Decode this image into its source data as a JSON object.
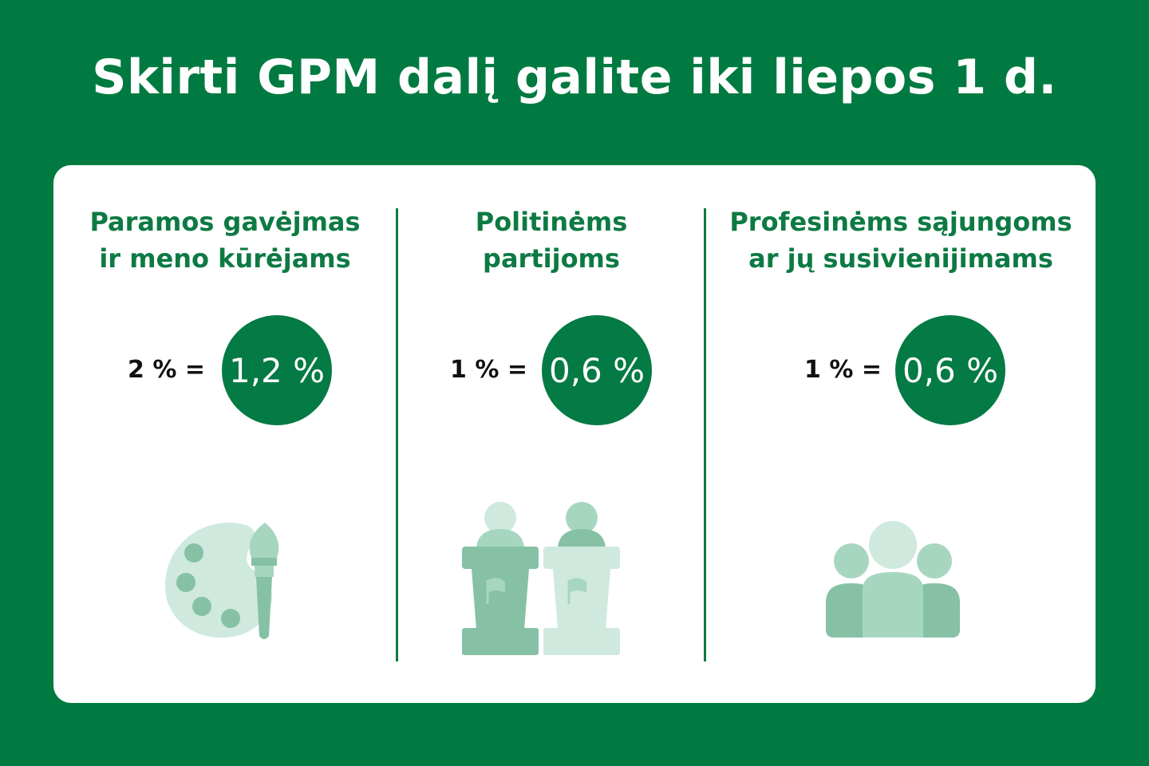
{
  "title": "Skirti GPM dalį galite iki liepos 1 d.",
  "columns": [
    {
      "heading_line1": "Paramos gavėjmas",
      "heading_line2": "ir meno kūrėjams",
      "equation_label": "2 % =",
      "value": "1,2 %",
      "illustration": "palette-brush-icon"
    },
    {
      "heading_line1": "Politinėms",
      "heading_line2": "partijoms",
      "equation_label": "1 % =",
      "value": "0,6 %",
      "illustration": "podium-speakers-icon"
    },
    {
      "heading_line1": "Profesinėms sąjungoms",
      "heading_line2": "ar jų susivienijimams",
      "equation_label": "1 % =",
      "value": "0,6 %",
      "illustration": "group-people-icon"
    }
  ],
  "colors": {
    "background": "#017a41",
    "accent": "#047a44",
    "heading": "#0d7a43",
    "icon_light": "#cfe9de",
    "icon_mid": "#a7d6c0",
    "icon_dark": "#86c1a5"
  }
}
